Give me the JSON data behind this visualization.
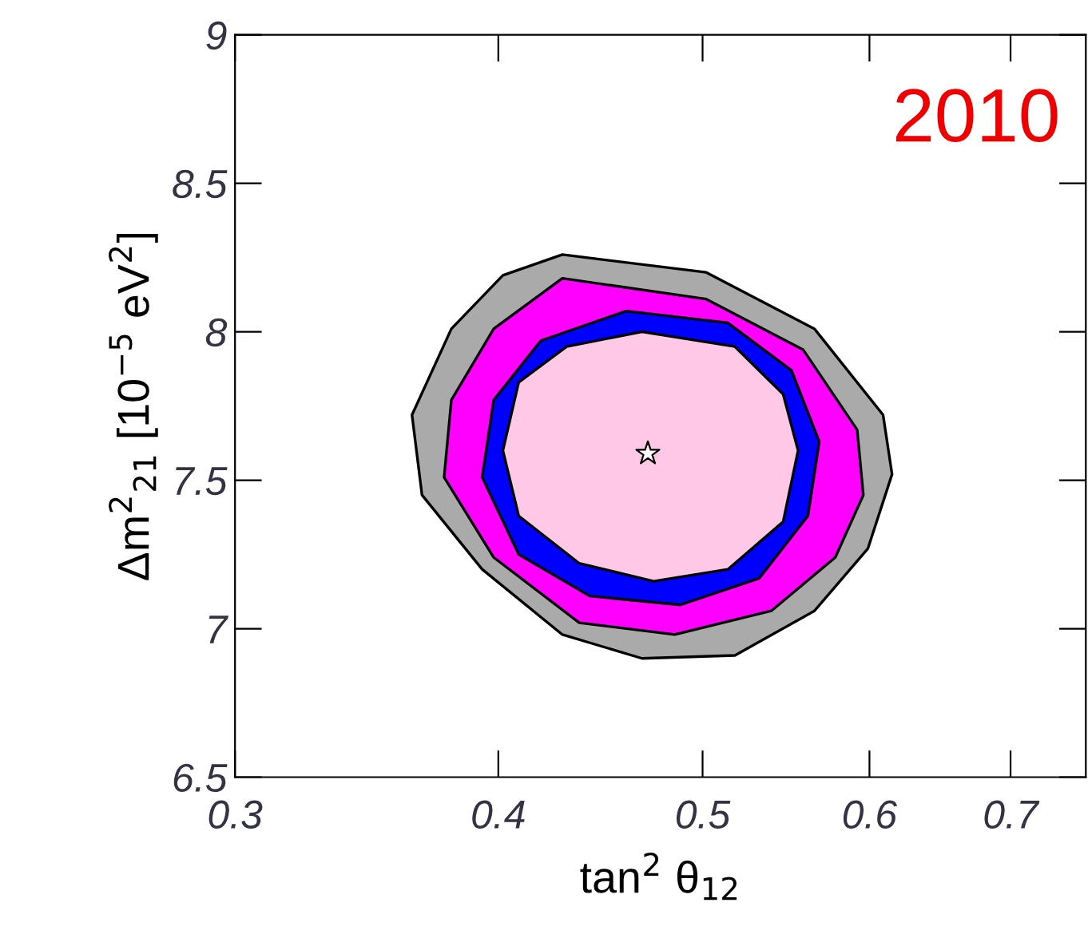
{
  "chart_data": {
    "type": "area",
    "xlabel": "tan$^{2}$ θ$_{12}$",
    "ylabel": "Δm$^{2}$$_{21}$ [10$^{−5}$ eV$^{2}$]",
    "annotations": [
      "2010"
    ],
    "log": "x",
    "xlim": [
      0.3,
      0.76
    ],
    "xticks": [
      0.3,
      0.4,
      0.5,
      0.6,
      0.7
    ],
    "ylim": [
      6.5,
      9
    ],
    "yticks": [
      6.5,
      7,
      7.5,
      8,
      8.5,
      9
    ],
    "grid": false,
    "legend": false,
    "series": [
      {
        "color": "#aaaaaa",
        "x": [
          0.429,
          0.502,
          0.565,
          0.609,
          0.615,
          0.599,
          0.565,
          0.518,
          0.468,
          0.429,
          0.393,
          0.368,
          0.364,
          0.38,
          0.402
        ],
        "values": [
          8.26,
          8.2,
          8.01,
          7.72,
          7.52,
          7.27,
          7.06,
          6.91,
          6.9,
          6.98,
          7.2,
          7.45,
          7.72,
          8.01,
          8.19
        ]
      },
      {
        "color": "#ff00ff",
        "x": [
          0.429,
          0.502,
          0.558,
          0.592,
          0.596,
          0.578,
          0.539,
          0.485,
          0.437,
          0.398,
          0.377,
          0.38,
          0.398
        ],
        "values": [
          8.18,
          8.11,
          7.94,
          7.67,
          7.45,
          7.24,
          7.06,
          6.98,
          7.02,
          7.24,
          7.51,
          7.77,
          8.01
        ]
      },
      {
        "color": "#0000ff",
        "x": [
          0.46,
          0.514,
          0.551,
          0.568,
          0.561,
          0.532,
          0.488,
          0.442,
          0.409,
          0.393,
          0.398,
          0.419
        ],
        "values": [
          8.07,
          8.03,
          7.87,
          7.63,
          7.38,
          7.17,
          7.08,
          7.11,
          7.25,
          7.51,
          7.77,
          7.97
        ]
      },
      {
        "color": "#ffc8e6",
        "x": [
          0.468,
          0.518,
          0.546,
          0.555,
          0.546,
          0.514,
          0.474,
          0.437,
          0.409,
          0.402,
          0.409,
          0.431
        ],
        "values": [
          8.0,
          7.95,
          7.79,
          7.6,
          7.36,
          7.2,
          7.16,
          7.22,
          7.38,
          7.6,
          7.83,
          7.95
        ]
      },
      {
        "type": "scatter",
        "marker": "star",
        "color": "#ffffff",
        "x": [
          0.471
        ],
        "values": [
          7.59
        ]
      }
    ]
  }
}
